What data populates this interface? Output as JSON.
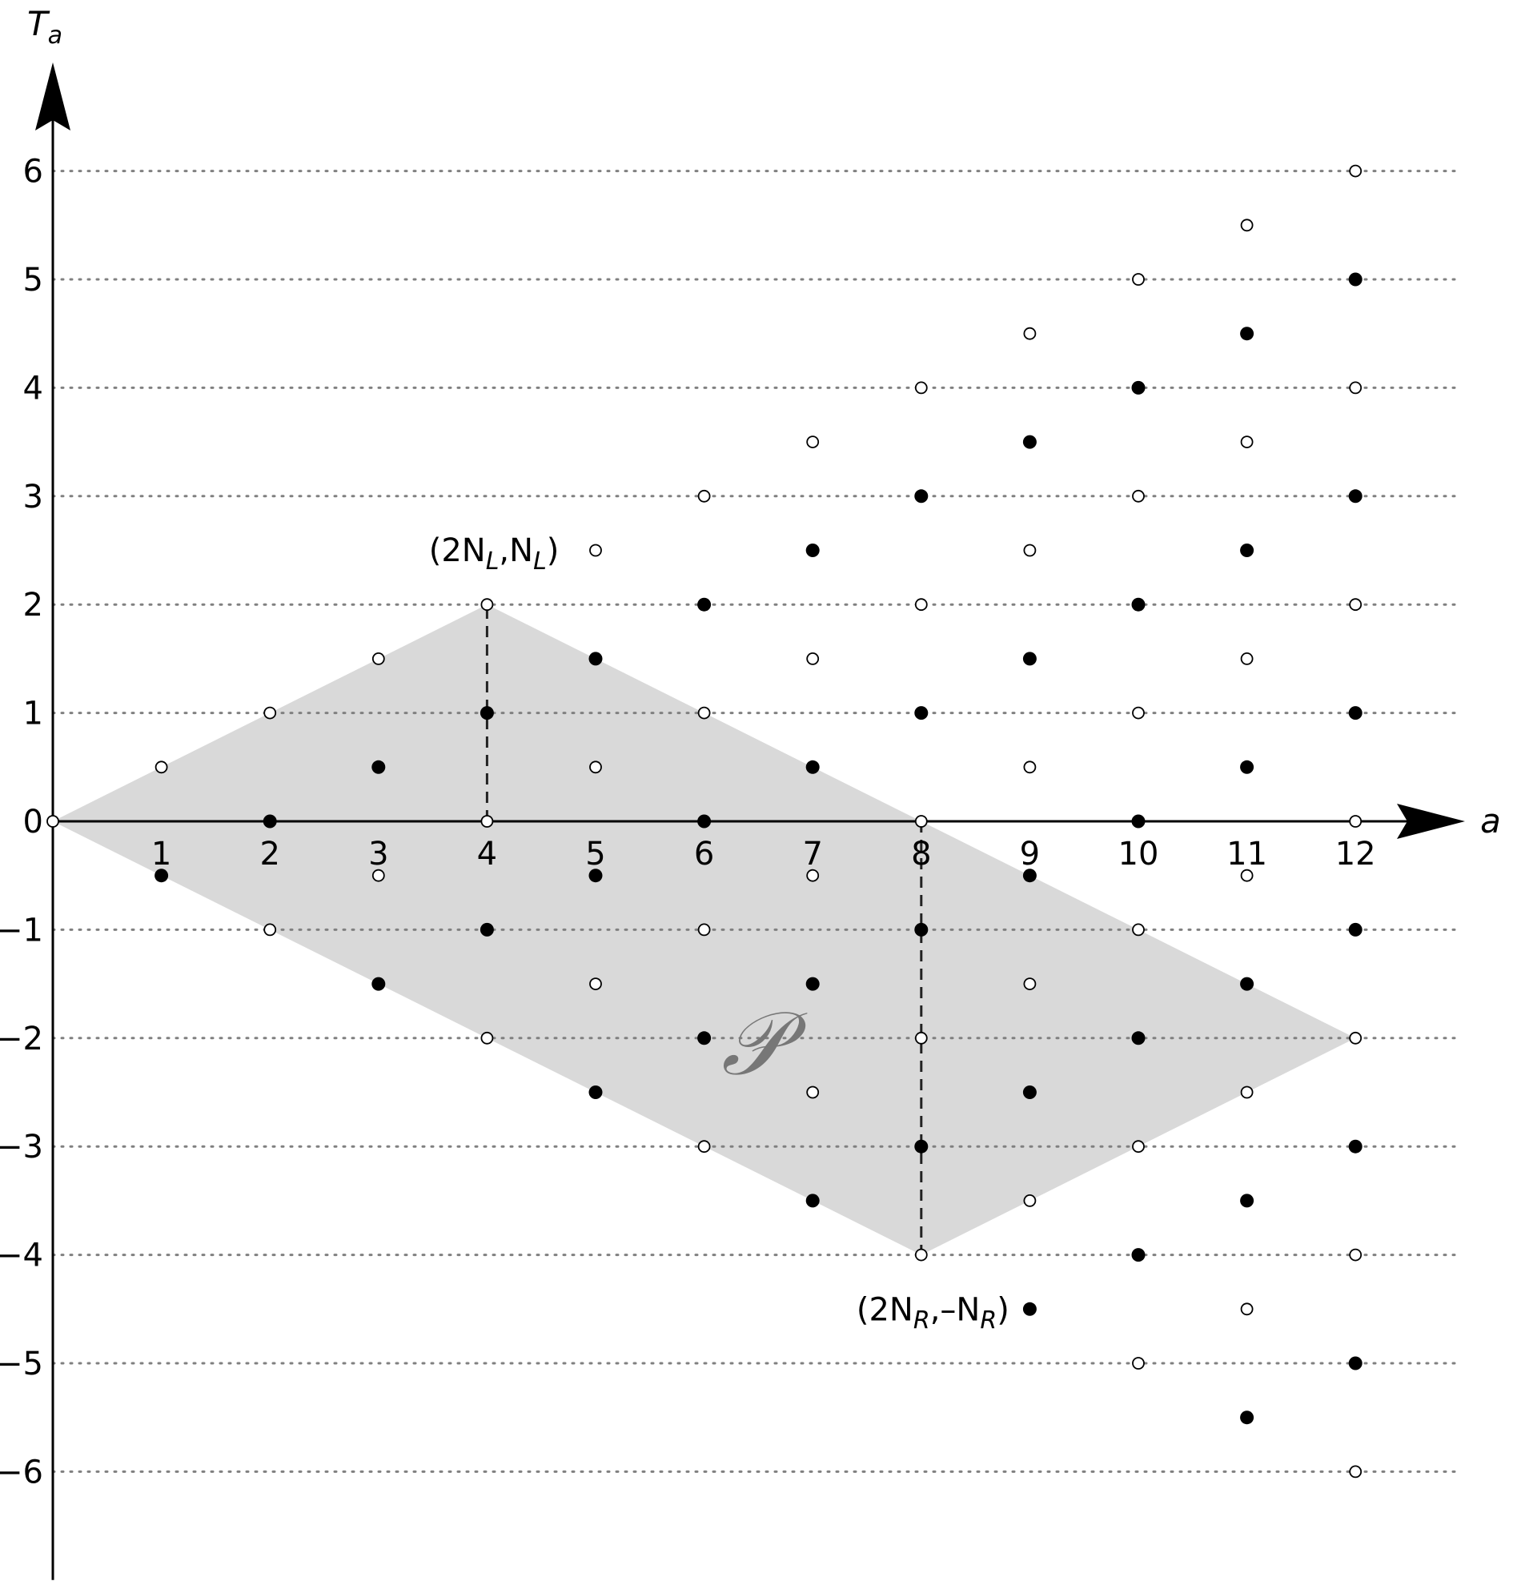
{
  "chart_data": {
    "type": "scatter",
    "xlabel": "a",
    "ylabel": "T_a",
    "xlim": [
      0,
      12.7
    ],
    "ylim": [
      -7,
      7
    ],
    "x_ticks": [
      1,
      2,
      3,
      4,
      5,
      6,
      7,
      8,
      9,
      10,
      11,
      12
    ],
    "y_ticks": [
      6,
      5,
      4,
      3,
      2,
      1,
      0,
      -1,
      -2,
      -3,
      -4,
      -5,
      -6
    ],
    "x_tick_labels": [
      "1",
      "2",
      "3",
      "4",
      "5",
      "6",
      "7",
      "8",
      "9",
      "10",
      "11",
      "12"
    ],
    "y_tick_labels": [
      "6",
      "5",
      "4",
      "3",
      "2",
      "1",
      "0",
      "−1",
      "−2",
      "−3",
      "−4",
      "−5",
      "−6"
    ],
    "grid": "dotted horizontal lines at integer y",
    "point_rule": "for each a in 0..12 points at T_a = a/2 - k (k = 0..a); filled when k is odd, hollow when k is even",
    "series": [
      {
        "marker": "hollow"
      },
      {
        "marker": "filled"
      }
    ],
    "region": {
      "label": "𝒫",
      "color": "#d9d9d9",
      "vertices": [
        [
          0,
          0
        ],
        [
          4,
          2
        ],
        [
          12,
          -2
        ],
        [
          8,
          -4
        ]
      ]
    },
    "dashed_lines": [
      {
        "x": 4,
        "from": 0,
        "to": 2
      },
      {
        "x": 8,
        "from": 0,
        "to": -4
      }
    ],
    "annotations": [
      {
        "base": "(2N",
        "sub1": "L",
        "mid": ",N",
        "sub2": "L",
        "end": ")",
        "at": [
          4,
          2
        ],
        "placement": "upper-left"
      },
      {
        "base": "(2N",
        "sub1": "R",
        "mid": ",–N",
        "sub2": "R",
        "end": ")",
        "at": [
          8,
          -4
        ],
        "placement": "lower-left"
      }
    ]
  }
}
